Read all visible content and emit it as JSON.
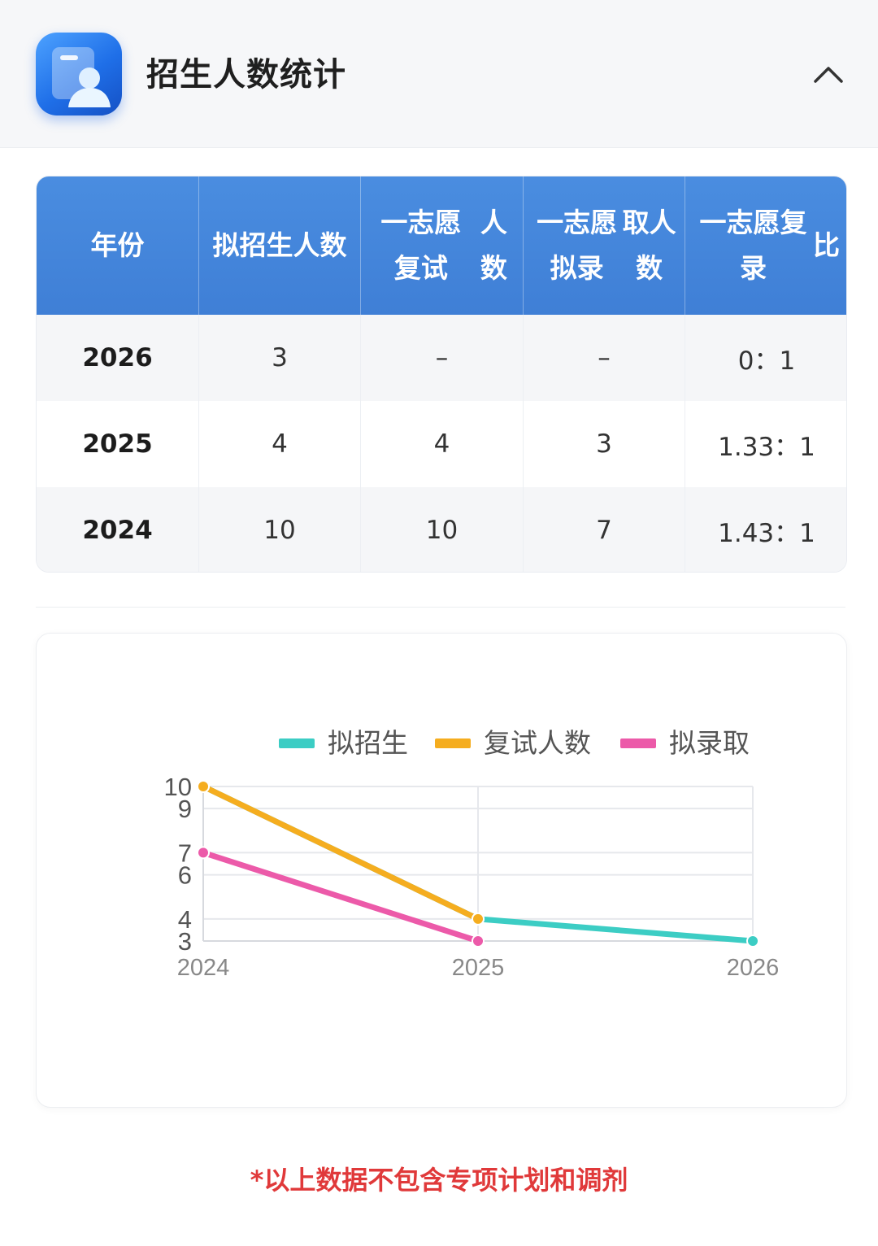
{
  "header": {
    "title": "招生人数统计",
    "icon": "profile-card-icon",
    "collapse_icon": "chevron-up-icon"
  },
  "table": {
    "columns": [
      "年份",
      "拟招生人数",
      "一志愿复试人数",
      "一志愿拟录取人数",
      "一志愿复录比"
    ],
    "rows": [
      [
        "2026",
        "3",
        "–",
        "–",
        "0：1"
      ],
      [
        "2025",
        "4",
        "4",
        "3",
        "1.33：1"
      ],
      [
        "2024",
        "10",
        "10",
        "7",
        "1.43：1"
      ]
    ]
  },
  "chart_data": {
    "type": "line",
    "x": [
      "2024",
      "2025",
      "2026"
    ],
    "series": [
      {
        "name": "拟招生",
        "values": [
          10,
          4,
          3
        ],
        "color": "#3ccdc4"
      },
      {
        "name": "复试人数",
        "values": [
          10,
          4,
          null
        ],
        "color": "#f5ad1f"
      },
      {
        "name": "拟录取",
        "values": [
          7,
          3,
          null
        ],
        "color": "#ec5aa9"
      }
    ],
    "y_ticks": [
      10,
      9,
      7,
      6,
      4,
      3
    ],
    "ylim": [
      3,
      10
    ],
    "grid": true,
    "legend": "top-center"
  },
  "footnote": "*以上数据不包含专项计划和调剂",
  "colors": {
    "header_bg": "#f6f7f9",
    "table_head": "#4285dc",
    "footnote": "#e0393a"
  }
}
